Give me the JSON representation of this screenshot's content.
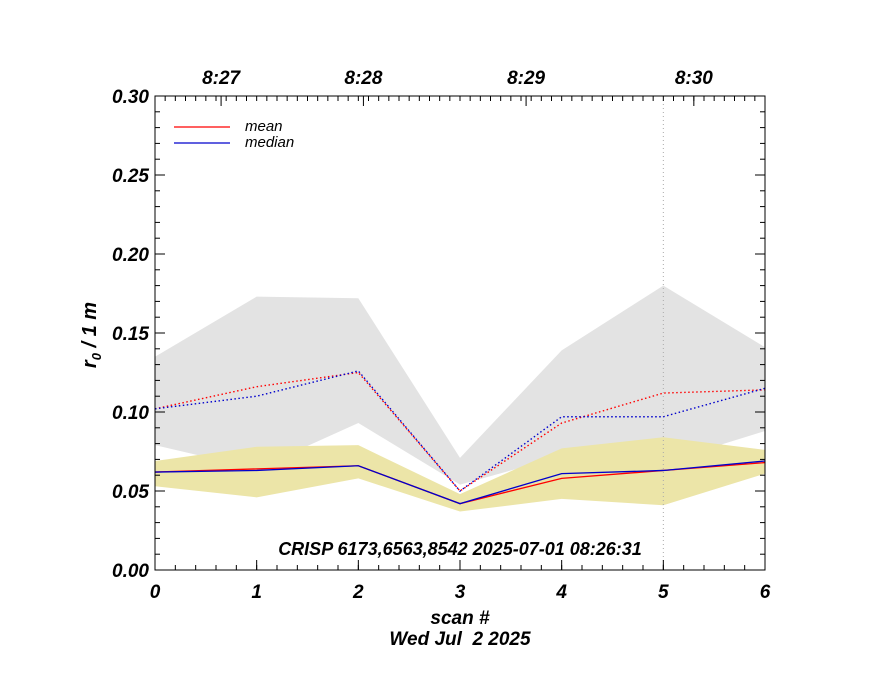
{
  "chart_data": {
    "type": "line",
    "xlabel": "scan #",
    "date_label": "Wed Jul  2 2025",
    "ylabel_main": "r",
    "ylabel_sub": "0",
    "ylabel_rest": " / 1 m",
    "annotation": "CRISP 6173,6563,8542 2025-07-01 08:26:31",
    "xlim": [
      0,
      6
    ],
    "ylim": [
      0,
      0.3
    ],
    "x_ticks": [
      "0",
      "1",
      "2",
      "3",
      "4",
      "5",
      "6"
    ],
    "y_ticks": [
      "0.00",
      "0.05",
      "0.10",
      "0.15",
      "0.20",
      "0.25",
      "0.30"
    ],
    "top_axis": {
      "labels": [
        "8:27",
        "8:28",
        "8:29",
        "8:30"
      ],
      "positions": [
        0.65,
        2.05,
        3.65,
        5.3
      ]
    },
    "vertical_marker_x": 5,
    "x": [
      0,
      1,
      2,
      3,
      4,
      5,
      6
    ],
    "bands": [
      {
        "color": "#e3e3e3",
        "lower": [
          0.079,
          0.064,
          0.093,
          0.054,
          0.072,
          0.068,
          0.088
        ],
        "upper": [
          0.135,
          0.173,
          0.172,
          0.071,
          0.139,
          0.18,
          0.141
        ]
      },
      {
        "color": "#ece5a8",
        "lower": [
          0.053,
          0.046,
          0.058,
          0.037,
          0.045,
          0.041,
          0.061
        ],
        "upper": [
          0.069,
          0.078,
          0.079,
          0.048,
          0.077,
          0.084,
          0.076
        ]
      }
    ],
    "series": [
      {
        "name": "mean",
        "color": "#ff0000",
        "style": "solid",
        "values": [
          0.062,
          0.064,
          0.066,
          0.042,
          0.058,
          0.063,
          0.068
        ]
      },
      {
        "name": "median",
        "color": "#0000cc",
        "style": "solid",
        "values": [
          0.062,
          0.063,
          0.066,
          0.042,
          0.061,
          0.063,
          0.069
        ]
      },
      {
        "name": "",
        "color": "#ff0000",
        "style": "dotted",
        "values": [
          0.102,
          0.116,
          0.125,
          0.05,
          0.093,
          0.112,
          0.114
        ]
      },
      {
        "name": "",
        "color": "#0000cc",
        "style": "dotted",
        "values": [
          0.102,
          0.11,
          0.126,
          0.05,
          0.097,
          0.097,
          0.115
        ]
      }
    ],
    "legend": {
      "position": "top-left",
      "entries": [
        "mean",
        "median"
      ]
    }
  }
}
